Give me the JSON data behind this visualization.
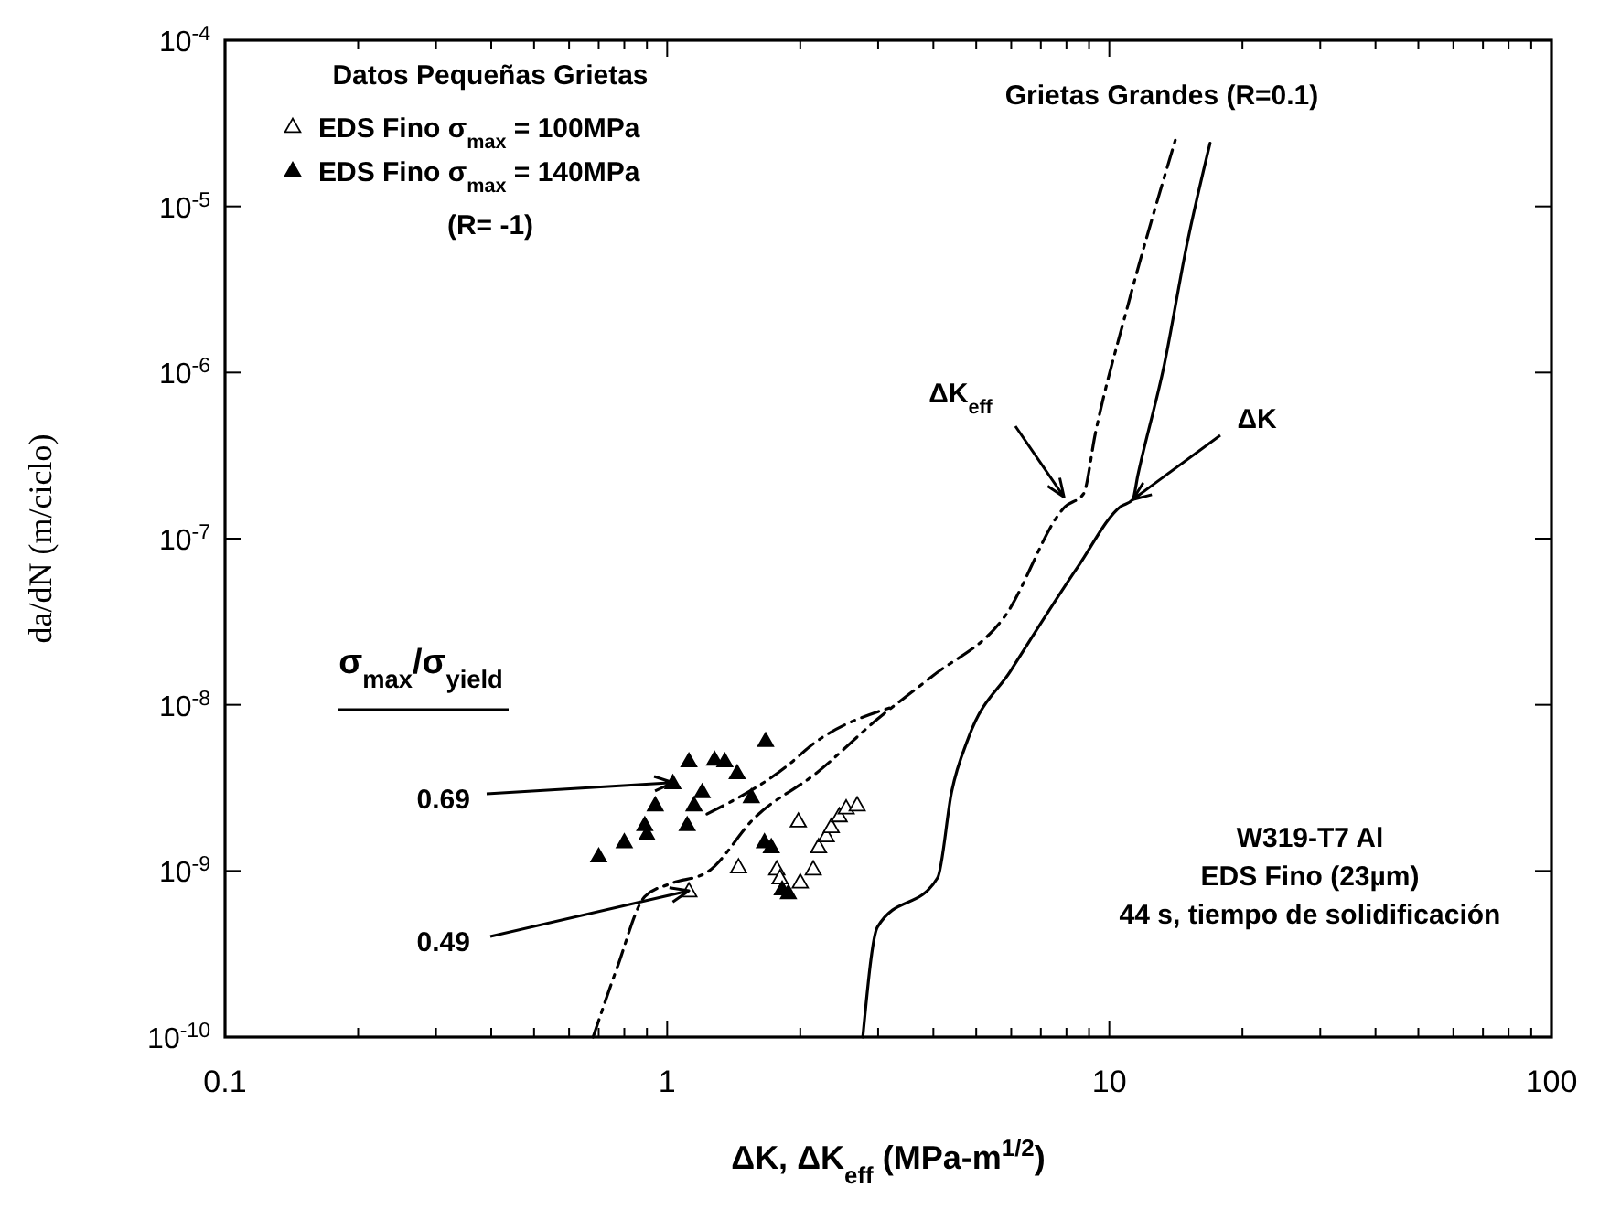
{
  "chart_data": {
    "type": "scatter",
    "xlabel": "ΔK, ΔK$_{eff}$ (MPa-m$^{1/2}$)",
    "ylabel": "da/dN (m/ciclo)",
    "log": "xy",
    "xlim": [
      0.1,
      100
    ],
    "ylim": [
      1e-10,
      0.0001
    ],
    "xticks": [
      0.1,
      {
        "value": 0.2,
        "label": null
      },
      {
        "value": 0.3,
        "label": null
      },
      {
        "value": 0.4,
        "label": null
      },
      {
        "value": 0.5,
        "label": null
      },
      {
        "value": 0.6,
        "label": null
      },
      {
        "value": 0.7,
        "label": null
      },
      {
        "value": 0.8,
        "label": null
      },
      {
        "value": 0.9,
        "label": null
      },
      1,
      {
        "value": 2,
        "label": null
      },
      {
        "value": 3,
        "label": null
      },
      {
        "value": 4,
        "label": null
      },
      {
        "value": 5,
        "label": null
      },
      {
        "value": 6,
        "label": null
      },
      {
        "value": 7,
        "label": null
      },
      {
        "value": 8,
        "label": null
      },
      {
        "value": 9,
        "label": null
      },
      10,
      {
        "value": 20,
        "label": null
      },
      {
        "value": 30,
        "label": null
      },
      {
        "value": 40,
        "label": null
      },
      {
        "value": 50,
        "label": null
      },
      {
        "value": 60,
        "label": null
      },
      {
        "value": 70,
        "label": null
      },
      {
        "value": 80,
        "label": null
      },
      {
        "value": 90,
        "label": null
      },
      100
    ],
    "yticks": [
      {
        "value": 1e-10,
        "label": "10$^{-10}$"
      },
      {
        "value": 1e-09,
        "label": "10$^{-9}$"
      },
      {
        "value": 1e-08,
        "label": "10$^{-8}$"
      },
      {
        "value": 1e-07,
        "label": "10$^{-7}$"
      },
      {
        "value": 1e-06,
        "label": "10$^{-6}$"
      },
      {
        "value": 1e-05,
        "label": "10$^{-5}$"
      },
      {
        "value": 0.0001,
        "label": "10$^{-4}$"
      }
    ],
    "legend": "top left",
    "legend_title": "Datos Pequeñas Grietas",
    "series": [
      {
        "name": "EDS Fino σ$_{max}$ = 100MPa",
        "color": "#000000",
        "marker": "triangle-open",
        "x": [
          1.12,
          1.45,
          1.98,
          1.77,
          1.8,
          2.0,
          2.14,
          2.2,
          2.29,
          2.35,
          2.45,
          2.54,
          2.69
        ],
        "values": [
          7.6e-10,
          1.06e-09,
          2e-09,
          1.03e-09,
          9.1e-10,
          8.6e-10,
          1.03e-09,
          1.4e-09,
          1.63e-09,
          1.85e-09,
          2.15e-09,
          2.4e-09,
          2.5e-09
        ]
      },
      {
        "name": "EDS Fino σ$_{max}$ = 140MPa",
        "color": "#000000",
        "marker": "triangle",
        "x": [
          0.7,
          0.8,
          0.89,
          0.9,
          0.94,
          1.03,
          1.12,
          1.11,
          1.15,
          1.2,
          1.28,
          1.35,
          1.44,
          1.55,
          1.67,
          1.66,
          1.72,
          1.82,
          1.88
        ],
        "values": [
          1.23e-09,
          1.5e-09,
          1.9e-09,
          1.67e-09,
          2.5e-09,
          3.4e-09,
          4.6e-09,
          1.9e-09,
          2.5e-09,
          3e-09,
          4.7e-09,
          4.6e-09,
          3.9e-09,
          2.8e-09,
          6.1e-09,
          1.5e-09,
          1.4e-09,
          7.8e-10,
          7.4e-10
        ]
      },
      {
        "type": "line",
        "color": "#000000",
        "line_style": "solid",
        "x": [
          2.77,
          2.99,
          4.09,
          4.4,
          4.81,
          5.98,
          8.5,
          10.6,
          11.3,
          11.6,
          13.3,
          15.0,
          16.9
        ],
        "values": [
          1e-10,
          4.6e-10,
          9.1e-10,
          3e-09,
          6.4e-09,
          1.6e-08,
          6.8e-08,
          1.56e-07,
          1.72e-07,
          2.4e-07,
          1.1e-06,
          6e-06,
          2.4e-05
        ]
      },
      {
        "type": "line",
        "color": "#000000",
        "line_style": "dashdot",
        "x": [
          0.68,
          0.77,
          0.89,
          1.02,
          1.23,
          1.58,
          2.18,
          2.99,
          3.97,
          5.8,
          7.95,
          8.74,
          9.3,
          11.0,
          14.1
        ],
        "values": [
          1e-10,
          2.6e-10,
          7e-10,
          8.4e-10,
          9.8e-10,
          2.1e-09,
          3.9e-09,
          8.2e-09,
          1.48e-08,
          3.4e-08,
          1.56e-07,
          1.86e-07,
          4.3e-07,
          2.5e-06,
          2.5e-05
        ]
      },
      {
        "type": "line",
        "color": "#000000",
        "line_style": "dashdot",
        "x": [
          1.23,
          1.91,
          2.1,
          3.19
        ],
        "values": [
          2.2e-09,
          4.5e-09,
          5.6e-09,
          9.6e-09
        ]
      }
    ],
    "annotations": [
      "Grietas Grandes (R=0.1)",
      "(R= -1)",
      "σ$_{max}$/σ$_{yield}$",
      {
        "text": "0.69",
        "x": 1.03,
        "y": 3.4e-09
      },
      {
        "text": "0.49",
        "x": 1.12,
        "y": 7.6e-10
      },
      {
        "text": "ΔK$_{eff}$",
        "x": 7.9,
        "y": 1.78e-07
      },
      {
        "text": "ΔK",
        "x": 11.3,
        "y": 1.72e-07
      },
      "W319-T7 Al",
      "EDS Fino (23µm)",
      "44 s, tiempo de solidificación"
    ]
  }
}
